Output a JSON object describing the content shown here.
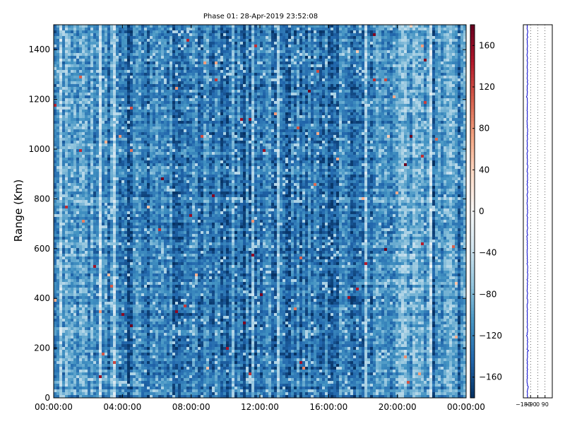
{
  "chart_data": [
    {
      "type": "heatmap",
      "title": "Phase 01: 28-Apr-2019 23:52:08",
      "xlabel": "",
      "ylabel": "Range (Km)",
      "xlim": [
        "00:00:00",
        "24:00:00"
      ],
      "ylim": [
        0,
        1500
      ],
      "x_tick_labels": [
        "00:00:00",
        "04:00:00",
        "08:00:00",
        "12:00:00",
        "16:00:00",
        "20:00:00",
        "00:00:00"
      ],
      "y_ticks": [
        0,
        200,
        400,
        600,
        800,
        1000,
        1200,
        1400
      ],
      "colorbar": {
        "range": [
          -180,
          180
        ],
        "ticks": [
          160,
          120,
          80,
          40,
          0,
          -40,
          -80,
          -120,
          -160
        ],
        "tick_labels": [
          "160",
          "120",
          "80",
          "40",
          "0",
          "−40",
          "−80",
          "−120",
          "−160"
        ],
        "colormap": "RdBu_r"
      },
      "dominant_value_range": [
        -180,
        -60
      ]
    },
    {
      "type": "line",
      "xlim": [
        -180,
        180
      ],
      "ylim": [
        0,
        1500
      ],
      "x_tick_labels": [
        "−180",
        "−90",
        "0",
        "90"
      ],
      "x_ticks": [
        -180,
        -90,
        0,
        90
      ],
      "grid": "x-dotted",
      "series_color": "#0000cc",
      "baseline_value": -130
    }
  ]
}
